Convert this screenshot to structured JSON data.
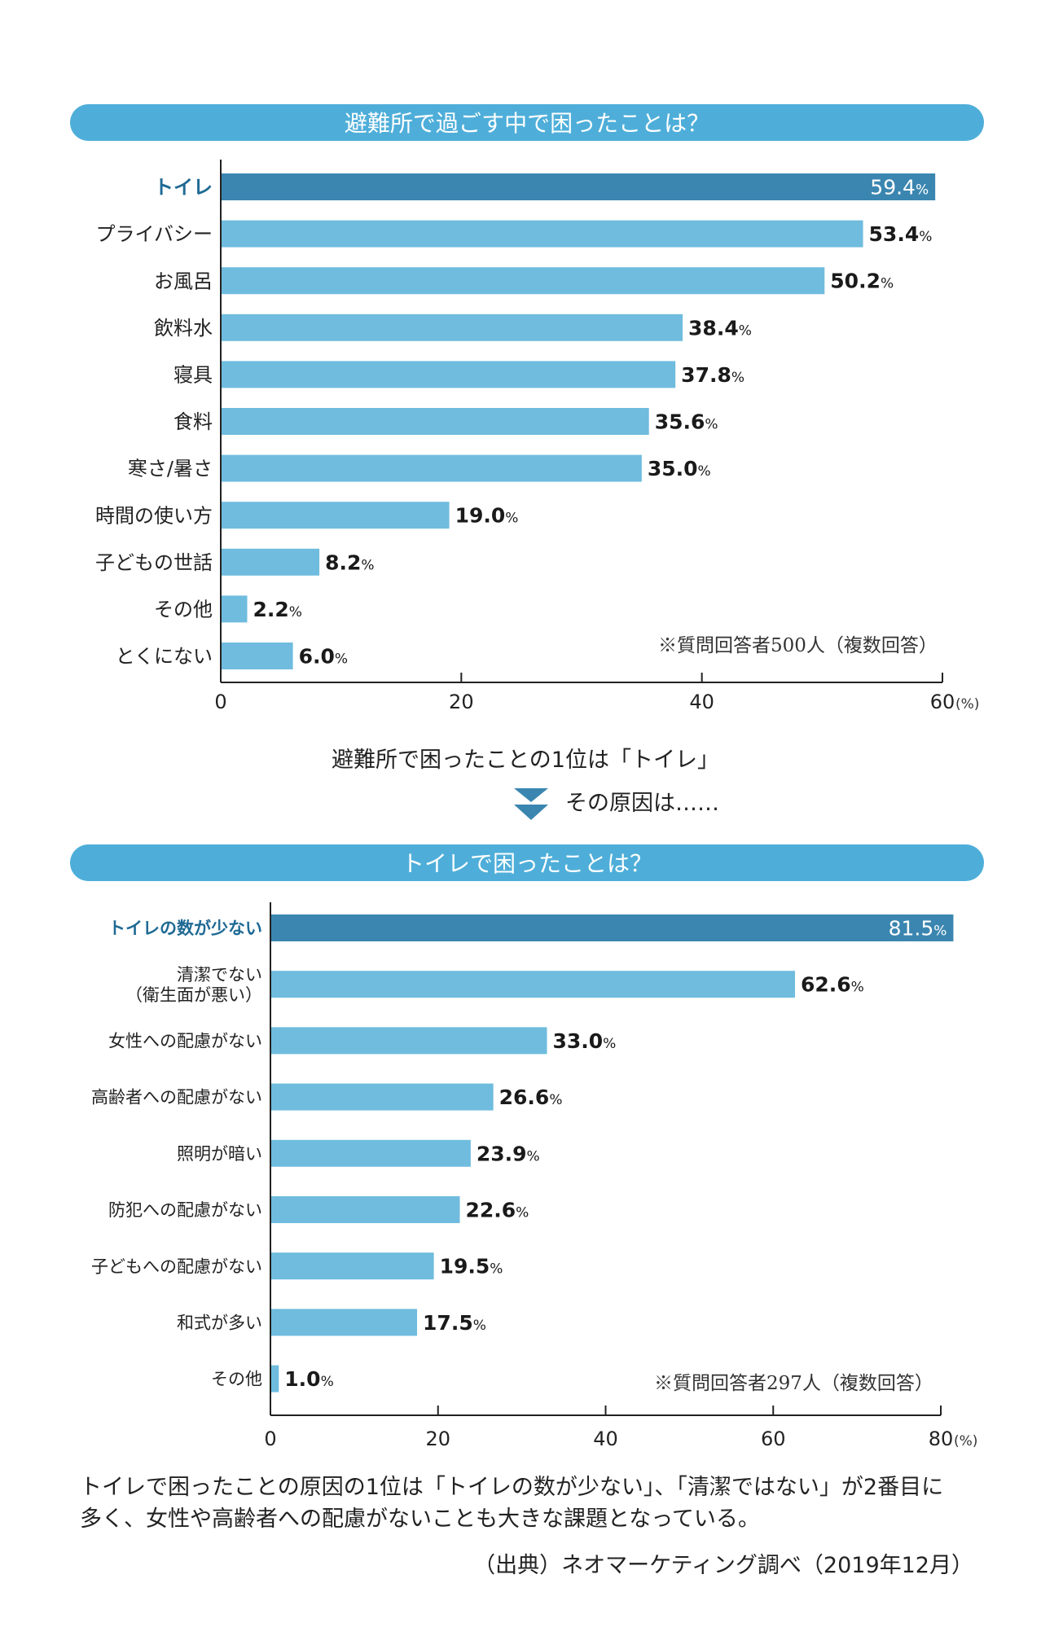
{
  "colors": {
    "header": "#4eaed9",
    "bar": "#6fbcde",
    "bar_highlight": "#3b86b0",
    "label_highlight": "#1f6a94"
  },
  "chart_data": [
    {
      "type": "bar",
      "orientation": "horizontal",
      "title": "避難所で過ごす中で困ったことは？",
      "categories": [
        [
          "トイレ"
        ],
        [
          "プライバシー"
        ],
        [
          "お風呂"
        ],
        [
          "飲料水"
        ],
        [
          "寝具"
        ],
        [
          "食料"
        ],
        [
          "寒さ/暑さ"
        ],
        [
          "時間の使い方"
        ],
        [
          "子どもの世話"
        ],
        [
          "その他"
        ],
        [
          "とくにない"
        ]
      ],
      "values": [
        59.4,
        53.4,
        50.2,
        38.4,
        37.8,
        35.6,
        35.0,
        19.0,
        8.2,
        2.2,
        6.0
      ],
      "highlight_index": 0,
      "value_unit": "%",
      "xlim": [
        0,
        60
      ],
      "xticks": [
        "0",
        "20",
        "40",
        "60"
      ],
      "xunit": "(%)",
      "note": "※質問回答者500人（複数回答）",
      "grid": false
    },
    {
      "type": "bar",
      "orientation": "horizontal",
      "title": "トイレで困ったことは？",
      "categories": [
        [
          "トイレの数が少ない"
        ],
        [
          "清潔でない",
          "（衛生面が悪い）"
        ],
        [
          "女性への配慮がない"
        ],
        [
          "高齢者への配慮がない"
        ],
        [
          "照明が暗い"
        ],
        [
          "防犯への配慮がない"
        ],
        [
          "子どもへの配慮がない"
        ],
        [
          "和式が多い"
        ],
        [
          "その他"
        ]
      ],
      "values": [
        81.5,
        62.6,
        33.0,
        26.6,
        23.9,
        22.6,
        19.5,
        17.5,
        1.0
      ],
      "highlight_index": 0,
      "value_unit": "%",
      "xlim": [
        0,
        80
      ],
      "xticks": [
        "0",
        "20",
        "40",
        "60",
        "80"
      ],
      "xunit": "(%)",
      "note": "※質問回答者297人（複数回答）",
      "grid": false
    }
  ],
  "transition": {
    "summary": "避難所で困ったことの1位は「トイレ」",
    "arrow_icon": "double-chevron-down-icon",
    "lead": "その原因は……"
  },
  "conclusion": [
    "トイレで困ったことの原因の1位は「トイレの数が少ない」、「清潔ではない」が2番目に",
    "多く、女性や高齢者への配慮がないことも大きな課題となっている。"
  ],
  "source": "（出典）ネオマーケティング調べ（2019年12月）"
}
